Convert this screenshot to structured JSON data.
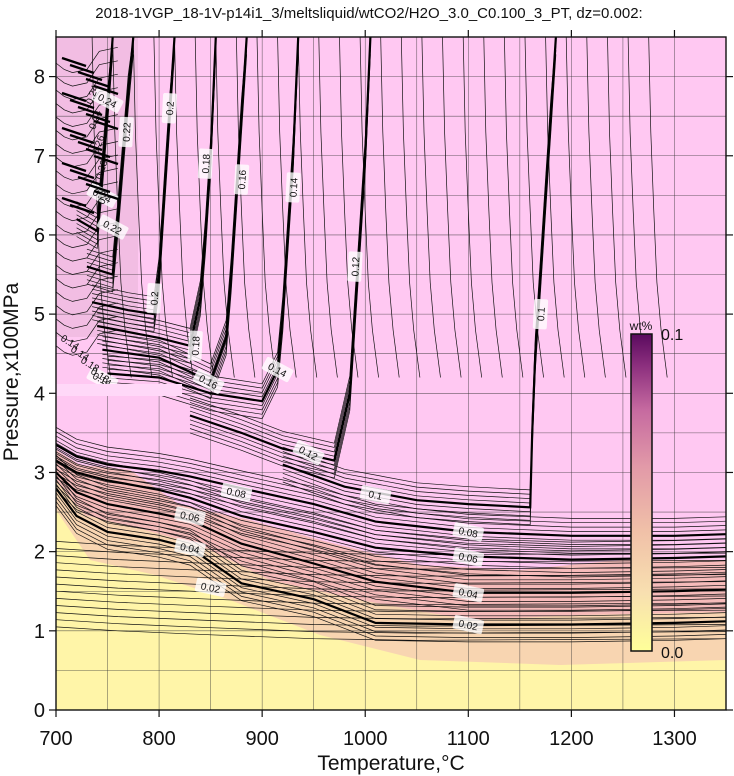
{
  "title": "2018-1VGP_18-1V-p14i1_3/meltsliquid/wtCO2/H2O_3.0_C0.100_3_PT, dz=0.002:",
  "chart_data": {
    "type": "contour",
    "title": "2018-1VGP_18-1V-p14i1_3/meltsliquid/wtCO2/H2O_3.0_C0.100_3_PT, dz=0.002:",
    "xlabel": "Temperature,°C",
    "ylabel": "Pressure,x100MPa",
    "xlim": [
      700,
      1350
    ],
    "ylim": [
      0,
      8.5
    ],
    "xticks": [
      700,
      800,
      900,
      1000,
      1100,
      1200,
      1300
    ],
    "yticks": [
      0,
      1,
      2,
      3,
      4,
      5,
      6,
      7,
      8
    ],
    "grid": true,
    "contour_interval": 0.002,
    "colorbar": {
      "title": "wt%",
      "min": 0.0,
      "max": 0.1,
      "min_label": "0.0",
      "max_label": "0.1",
      "colors": [
        "#ffff99",
        "#f8e0b0",
        "#f0c0a8",
        "#e29aa8",
        "#c66aa0",
        "#8c2f7e",
        "#5a0a5e"
      ]
    },
    "background_colors": {
      "low": "#fff5a8",
      "mid": "#f5c7c0",
      "high": "#ffc8f2"
    },
    "highlight_band": {
      "x": [
        700,
        825
      ],
      "y": 4.07,
      "color": "#ffd8f8"
    },
    "contours": [
      {
        "level": 0.02,
        "label": "0.02",
        "points": [
          [
            700,
            2.8
          ],
          [
            720,
            2.45
          ],
          [
            750,
            2.25
          ],
          [
            800,
            2.15
          ],
          [
            830,
            2.05
          ],
          [
            880,
            1.6
          ],
          [
            950,
            1.4
          ],
          [
            1010,
            1.1
          ],
          [
            1100,
            1.08
          ],
          [
            1200,
            1.08
          ],
          [
            1300,
            1.1
          ],
          [
            1350,
            1.12
          ]
        ],
        "labels_at": [
          [
            850,
            1.55
          ],
          [
            1100,
            1.08
          ]
        ]
      },
      {
        "level": 0.04,
        "label": "0.04",
        "points": [
          [
            700,
            3.0
          ],
          [
            720,
            2.75
          ],
          [
            750,
            2.6
          ],
          [
            800,
            2.48
          ],
          [
            830,
            2.4
          ],
          [
            880,
            2.1
          ],
          [
            950,
            1.85
          ],
          [
            1010,
            1.62
          ],
          [
            1100,
            1.48
          ],
          [
            1200,
            1.48
          ],
          [
            1300,
            1.5
          ],
          [
            1350,
            1.52
          ]
        ],
        "labels_at": [
          [
            830,
            2.05
          ],
          [
            1100,
            1.48
          ]
        ]
      },
      {
        "level": 0.06,
        "label": "0.06",
        "points": [
          [
            700,
            3.15
          ],
          [
            720,
            3.0
          ],
          [
            750,
            2.9
          ],
          [
            800,
            2.78
          ],
          [
            830,
            2.68
          ],
          [
            880,
            2.45
          ],
          [
            950,
            2.25
          ],
          [
            1010,
            2.05
          ],
          [
            1100,
            1.94
          ],
          [
            1200,
            1.9
          ],
          [
            1300,
            1.92
          ],
          [
            1350,
            1.94
          ]
        ],
        "labels_at": [
          [
            830,
            2.45
          ],
          [
            1100,
            1.93
          ]
        ]
      },
      {
        "level": 0.08,
        "label": "0.08",
        "points": [
          [
            700,
            3.35
          ],
          [
            720,
            3.2
          ],
          [
            750,
            3.1
          ],
          [
            800,
            3.02
          ],
          [
            830,
            2.95
          ],
          [
            880,
            2.8
          ],
          [
            950,
            2.6
          ],
          [
            1010,
            2.38
          ],
          [
            1100,
            2.25
          ],
          [
            1200,
            2.2
          ],
          [
            1300,
            2.2
          ],
          [
            1350,
            2.22
          ]
        ],
        "labels_at": [
          [
            875,
            2.75
          ],
          [
            1100,
            2.25
          ]
        ]
      },
      {
        "level": 0.1,
        "label": "0.1",
        "points": [
          [
            920,
            3.1
          ],
          [
            980,
            2.82
          ],
          [
            1050,
            2.65
          ],
          [
            1100,
            2.6
          ],
          [
            1160,
            2.56
          ],
          [
            1162,
            3.5
          ],
          [
            1165,
            4.5
          ],
          [
            1170,
            5.5
          ],
          [
            1175,
            6.5
          ],
          [
            1180,
            7.5
          ],
          [
            1185,
            8.5
          ]
        ],
        "labels_at": [
          [
            1010,
            2.72
          ],
          [
            1170,
            5.0
          ]
        ]
      },
      {
        "level": 0.12,
        "label": "0.12",
        "points": [
          [
            830,
            3.72
          ],
          [
            880,
            3.5
          ],
          [
            920,
            3.3
          ],
          [
            970,
            3.15
          ],
          [
            985,
            4.0
          ],
          [
            990,
            5.0
          ],
          [
            995,
            6.0
          ],
          [
            1000,
            7.0
          ],
          [
            1005,
            8.5
          ]
        ],
        "labels_at": [
          [
            945,
            3.25
          ],
          [
            990,
            5.6
          ]
        ]
      },
      {
        "level": 0.14,
        "label": "0.14",
        "points": [
          [
            750,
            4.25
          ],
          [
            800,
            4.2
          ],
          [
            850,
            4.0
          ],
          [
            900,
            3.9
          ],
          [
            915,
            4.3
          ],
          [
            920,
            5.0
          ],
          [
            925,
            6.0
          ],
          [
            930,
            7.0
          ],
          [
            935,
            8.5
          ]
        ],
        "labels_at": [
          [
            745,
            4.18
          ],
          [
            915,
            4.3
          ],
          [
            930,
            6.6
          ]
        ]
      },
      {
        "level": 0.16,
        "label": "0.16",
        "points": [
          [
            745,
            4.55
          ],
          [
            800,
            4.45
          ],
          [
            850,
            4.15
          ],
          [
            865,
            4.7
          ],
          [
            870,
            5.5
          ],
          [
            875,
            6.5
          ],
          [
            880,
            7.5
          ],
          [
            885,
            8.5
          ]
        ],
        "labels_at": [
          [
            848,
            4.15
          ],
          [
            880,
            6.7
          ]
        ]
      },
      {
        "level": 0.18,
        "label": "0.18",
        "points": [
          [
            740,
            4.85
          ],
          [
            800,
            4.7
          ],
          [
            830,
            4.6
          ],
          [
            840,
            5.2
          ],
          [
            845,
            6.0
          ],
          [
            850,
            7.0
          ],
          [
            855,
            8.5
          ]
        ],
        "labels_at": [
          [
            835,
            4.6
          ],
          [
            845,
            6.9
          ]
        ]
      },
      {
        "level": 0.2,
        "label": "0.2",
        "points": [
          [
            735,
            5.15
          ],
          [
            770,
            5.05
          ],
          [
            795,
            5.0
          ],
          [
            800,
            5.5
          ],
          [
            805,
            6.5
          ],
          [
            810,
            7.5
          ],
          [
            815,
            8.5
          ]
        ],
        "labels_at": [
          [
            795,
            5.2
          ],
          [
            810,
            7.6
          ]
        ]
      },
      {
        "level": 0.22,
        "label": "0.22",
        "points": [
          [
            730,
            5.6
          ],
          [
            755,
            5.5
          ],
          [
            760,
            6.2
          ],
          [
            765,
            7.0
          ],
          [
            770,
            7.8
          ],
          [
            775,
            8.5
          ]
        ],
        "labels_at": [
          [
            755,
            6.1
          ],
          [
            768,
            7.3
          ]
        ]
      },
      {
        "level": 0.24,
        "label": "0.24",
        "points": [
          [
            720,
            6.2
          ],
          [
            740,
            6.05
          ],
          [
            745,
            6.8
          ],
          [
            750,
            7.6
          ],
          [
            755,
            8.5
          ]
        ],
        "labels_at": [
          [
            745,
            6.5
          ],
          [
            750,
            7.7
          ]
        ]
      }
    ],
    "top_left_labels": [
      "0.24",
      "0.24",
      "0.26",
      "0.28",
      "0.3"
    ],
    "left_labels_near_4": [
      "0.14",
      "0.14",
      "0.18",
      "0.18"
    ]
  }
}
